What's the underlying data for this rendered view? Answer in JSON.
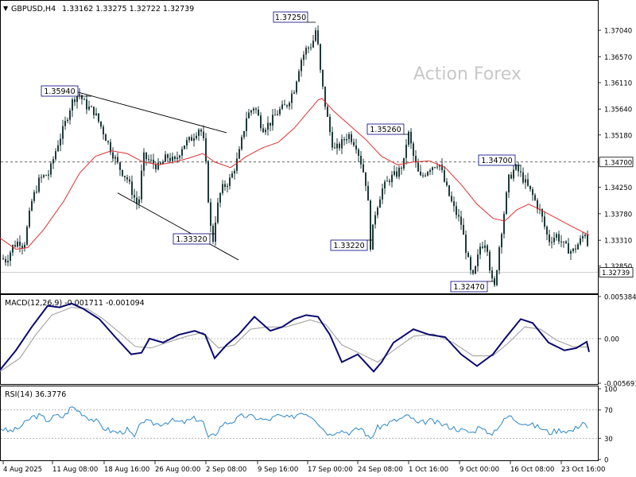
{
  "header": {
    "symbol": "GBPUSD,H4",
    "ohlc": "1.33162 1.33275 1.32722 1.32739"
  },
  "watermark": "Action Forex",
  "colors": {
    "candle": "#1f3a3a",
    "ma": "#e03030",
    "macd_main": "#0a0a6e",
    "macd_signal": "#9a9a9a",
    "rsi": "#2d86c8",
    "level_line": "#333333",
    "trendline": "#000000",
    "grid_dotted": "#aaaaaa",
    "box_border": "#000080"
  },
  "chart_data": [
    {
      "type": "candlestick",
      "title": "GBPUSD,H4",
      "ylim": [
        1.3238,
        1.3755
      ],
      "y_ticks": [
        "1.37040",
        "1.36570",
        "1.36110",
        "1.35640",
        "1.35180",
        "1.34700",
        "1.34250",
        "1.33780",
        "1.33310",
        "1.32850",
        "1.32739"
      ],
      "x_ticks": [
        "4 Aug 2025",
        "11 Aug 08:00",
        "18 Aug 16:00",
        "26 Aug 00:00",
        "2 Sep 08:00",
        "9 Sep 16:00",
        "17 Sep 00:00",
        "24 Sep 08:00",
        "1 Oct 16:00",
        "9 Oct 00:00",
        "16 Oct 08:00",
        "23 Oct 16:00"
      ],
      "price_path": [
        [
          0,
          1.33
        ],
        [
          8,
          1.3295
        ],
        [
          16,
          1.332
        ],
        [
          24,
          1.333
        ],
        [
          30,
          1.332
        ],
        [
          40,
          1.34
        ],
        [
          50,
          1.344
        ],
        [
          62,
          1.345
        ],
        [
          72,
          1.35
        ],
        [
          80,
          1.353
        ],
        [
          90,
          1.3575
        ],
        [
          98,
          1.3594
        ],
        [
          108,
          1.357
        ],
        [
          118,
          1.356
        ],
        [
          128,
          1.353
        ],
        [
          140,
          1.349
        ],
        [
          150,
          1.346
        ],
        [
          160,
          1.344
        ],
        [
          168,
          1.341
        ],
        [
          174,
          1.339
        ],
        [
          180,
          1.348
        ],
        [
          190,
          1.347
        ],
        [
          200,
          1.346
        ],
        [
          210,
          1.348
        ],
        [
          220,
          1.347
        ],
        [
          230,
          1.35
        ],
        [
          240,
          1.351
        ],
        [
          250,
          1.353
        ],
        [
          255,
          1.352
        ],
        [
          260,
          1.345
        ],
        [
          264,
          1.336
        ],
        [
          268,
          1.3332
        ],
        [
          272,
          1.338
        ],
        [
          278,
          1.342
        ],
        [
          290,
          1.344
        ],
        [
          300,
          1.348
        ],
        [
          310,
          1.355
        ],
        [
          320,
          1.357
        ],
        [
          330,
          1.353
        ],
        [
          340,
          1.354
        ],
        [
          350,
          1.356
        ],
        [
          360,
          1.357
        ],
        [
          370,
          1.36
        ],
        [
          378,
          1.365
        ],
        [
          385,
          1.367
        ],
        [
          393,
          1.368
        ],
        [
          398,
          1.371
        ],
        [
          402,
          1.364
        ],
        [
          408,
          1.358
        ],
        [
          414,
          1.353
        ],
        [
          420,
          1.349
        ],
        [
          428,
          1.35
        ],
        [
          438,
          1.352
        ],
        [
          448,
          1.35
        ],
        [
          456,
          1.346
        ],
        [
          462,
          1.342
        ],
        [
          466,
          1.3322
        ],
        [
          472,
          1.338
        ],
        [
          480,
          1.342
        ],
        [
          490,
          1.344
        ],
        [
          500,
          1.345
        ],
        [
          508,
          1.347
        ],
        [
          513,
          1.3526
        ],
        [
          520,
          1.348
        ],
        [
          528,
          1.344
        ],
        [
          540,
          1.346
        ],
        [
          552,
          1.347
        ],
        [
          560,
          1.343
        ],
        [
          570,
          1.339
        ],
        [
          580,
          1.336
        ],
        [
          588,
          1.33
        ],
        [
          594,
          1.326
        ],
        [
          598,
          1.328
        ],
        [
          604,
          1.332
        ],
        [
          612,
          1.333
        ],
        [
          618,
          1.326
        ],
        [
          622,
          1.3247
        ],
        [
          628,
          1.332
        ],
        [
          634,
          1.338
        ],
        [
          640,
          1.344
        ],
        [
          648,
          1.346
        ],
        [
          654,
          1.345
        ],
        [
          662,
          1.343
        ],
        [
          670,
          1.341
        ],
        [
          680,
          1.338
        ],
        [
          690,
          1.333
        ],
        [
          700,
          1.334
        ],
        [
          710,
          1.332
        ],
        [
          720,
          1.331
        ],
        [
          730,
          1.333
        ],
        [
          738,
          1.335
        ],
        [
          741,
          1.3274
        ]
      ],
      "series": [
        {
          "ma_path": [
            [
              0,
              1.3335
            ],
            [
              20,
              1.3315
            ],
            [
              35,
              1.3318
            ],
            [
              55,
              1.335
            ],
            [
              80,
              1.34
            ],
            [
              100,
              1.345
            ],
            [
              120,
              1.348
            ],
            [
              140,
              1.349
            ],
            [
              160,
              1.3485
            ],
            [
              180,
              1.347
            ],
            [
              200,
              1.3465
            ],
            [
              220,
              1.347
            ],
            [
              240,
              1.3478
            ],
            [
              255,
              1.3485
            ],
            [
              270,
              1.347
            ],
            [
              290,
              1.346
            ],
            [
              310,
              1.348
            ],
            [
              330,
              1.3495
            ],
            [
              350,
              1.3505
            ],
            [
              370,
              1.353
            ],
            [
              385,
              1.3555
            ],
            [
              400,
              1.358
            ],
            [
              405,
              1.3583
            ],
            [
              420,
              1.356
            ],
            [
              440,
              1.3535
            ],
            [
              460,
              1.351
            ],
            [
              480,
              1.348
            ],
            [
              500,
              1.3465
            ],
            [
              520,
              1.347
            ],
            [
              540,
              1.3472
            ],
            [
              560,
              1.346
            ],
            [
              580,
              1.343
            ],
            [
              600,
              1.3395
            ],
            [
              620,
              1.337
            ],
            [
              635,
              1.3365
            ],
            [
              650,
              1.3385
            ],
            [
              665,
              1.3395
            ],
            [
              680,
              1.3385
            ],
            [
              700,
              1.337
            ],
            [
              720,
              1.3355
            ],
            [
              741,
              1.334
            ]
          ]
        }
      ],
      "levels": [
        {
          "value": 1.347,
          "label": "1.34700",
          "style": "dashed"
        }
      ],
      "current_price": {
        "value": 1.32739,
        "label": "1.32739"
      },
      "annotations": [
        "1.35940",
        "1.37250",
        "1.35260",
        "1.34700",
        "1.33320",
        "1.33220",
        "1.32470"
      ],
      "trendlines": [
        {
          "from": [
            98,
            1.3594
          ],
          "to": [
            285,
            1.3522
          ]
        },
        {
          "from": [
            148,
            1.3415
          ],
          "to": [
            300,
            1.3296
          ]
        }
      ]
    },
    {
      "type": "line",
      "title": "MACD(12,26,9) -0.001711 -0.001094",
      "ylim": [
        -0.00569,
        0.00538
      ],
      "y_ticks": [
        "0.005384",
        "0.00",
        "-0.005691"
      ],
      "series": [
        {
          "name": "MACD(12,26,9)",
          "values_path": [
            [
              0,
              -0.004
            ],
            [
              20,
              -0.0015
            ],
            [
              40,
              0.0015
            ],
            [
              60,
              0.0042
            ],
            [
              75,
              0.004
            ],
            [
              90,
              0.0045
            ],
            [
              105,
              0.0038
            ],
            [
              125,
              0.0025
            ],
            [
              145,
              0.0002
            ],
            [
              165,
              -0.002
            ],
            [
              178,
              -0.0018
            ],
            [
              188,
              0.0
            ],
            [
              205,
              -0.0005
            ],
            [
              225,
              0.0005
            ],
            [
              245,
              0.001
            ],
            [
              258,
              0.0005
            ],
            [
              270,
              -0.0025
            ],
            [
              285,
              -0.0008
            ],
            [
              300,
              0.0005
            ],
            [
              320,
              0.0028
            ],
            [
              340,
              0.001
            ],
            [
              355,
              0.0015
            ],
            [
              370,
              0.0025
            ],
            [
              385,
              0.003
            ],
            [
              400,
              0.0028
            ],
            [
              415,
              0.0005
            ],
            [
              430,
              -0.003
            ],
            [
              450,
              -0.002
            ],
            [
              470,
              -0.0042
            ],
            [
              480,
              -0.003
            ],
            [
              495,
              -0.0005
            ],
            [
              520,
              0.0012
            ],
            [
              540,
              0.0005
            ],
            [
              560,
              0.0002
            ],
            [
              580,
              -0.002
            ],
            [
              600,
              -0.0035
            ],
            [
              620,
              -0.002
            ],
            [
              635,
              0.0
            ],
            [
              655,
              0.0025
            ],
            [
              670,
              0.002
            ],
            [
              690,
              -0.0005
            ],
            [
              710,
              -0.0015
            ],
            [
              725,
              -0.0012
            ],
            [
              738,
              -0.0004
            ],
            [
              741,
              -0.0017
            ]
          ]
        },
        {
          "name": "Signal",
          "values_path": [
            [
              0,
              -0.0042
            ],
            [
              25,
              -0.0025
            ],
            [
              45,
              0.0005
            ],
            [
              65,
              0.003
            ],
            [
              90,
              0.004
            ],
            [
              110,
              0.0038
            ],
            [
              130,
              0.0025
            ],
            [
              150,
              0.0008
            ],
            [
              170,
              -0.001
            ],
            [
              190,
              -0.0012
            ],
            [
              210,
              -0.0005
            ],
            [
              235,
              0.0003
            ],
            [
              255,
              0.0008
            ],
            [
              275,
              -0.0012
            ],
            [
              295,
              -0.0008
            ],
            [
              315,
              0.0012
            ],
            [
              335,
              0.0015
            ],
            [
              360,
              0.0015
            ],
            [
              390,
              0.0024
            ],
            [
              410,
              0.0018
            ],
            [
              430,
              -0.0008
            ],
            [
              455,
              -0.002
            ],
            [
              475,
              -0.003
            ],
            [
              495,
              -0.0015
            ],
            [
              520,
              0.0003
            ],
            [
              545,
              0.0006
            ],
            [
              570,
              -0.0005
            ],
            [
              595,
              -0.0022
            ],
            [
              620,
              -0.0022
            ],
            [
              640,
              -0.0005
            ],
            [
              660,
              0.0015
            ],
            [
              680,
              0.0012
            ],
            [
              700,
              -0.0002
            ],
            [
              720,
              -0.001
            ],
            [
              741,
              -0.0011
            ]
          ]
        }
      ]
    },
    {
      "type": "line",
      "title": "RSI(14) 36.3776",
      "ylim": [
        0,
        100
      ],
      "y_ticks": [
        "100",
        "70",
        "30",
        "0"
      ],
      "levels": [
        70,
        30
      ],
      "series": [
        {
          "name": "RSI(14)",
          "values_path": [
            [
              0,
              45
            ],
            [
              10,
              40
            ],
            [
              20,
              42
            ],
            [
              30,
              50
            ],
            [
              40,
              60
            ],
            [
              50,
              62
            ],
            [
              60,
              55
            ],
            [
              70,
              62
            ],
            [
              80,
              60
            ],
            [
              90,
              75
            ],
            [
              100,
              68
            ],
            [
              110,
              60
            ],
            [
              120,
              55
            ],
            [
              130,
              45
            ],
            [
              140,
              40
            ],
            [
              150,
              38
            ],
            [
              160,
              42
            ],
            [
              170,
              30
            ],
            [
              178,
              55
            ],
            [
              188,
              52
            ],
            [
              200,
              50
            ],
            [
              215,
              55
            ],
            [
              230,
              52
            ],
            [
              245,
              58
            ],
            [
              255,
              55
            ],
            [
              262,
              30
            ],
            [
              270,
              35
            ],
            [
              280,
              50
            ],
            [
              295,
              55
            ],
            [
              305,
              62
            ],
            [
              320,
              60
            ],
            [
              335,
              55
            ],
            [
              350,
              62
            ],
            [
              365,
              58
            ],
            [
              380,
              68
            ],
            [
              395,
              60
            ],
            [
              405,
              45
            ],
            [
              415,
              35
            ],
            [
              425,
              42
            ],
            [
              440,
              38
            ],
            [
              455,
              45
            ],
            [
              465,
              28
            ],
            [
              475,
              45
            ],
            [
              490,
              52
            ],
            [
              505,
              58
            ],
            [
              515,
              62
            ],
            [
              525,
              50
            ],
            [
              540,
              55
            ],
            [
              555,
              50
            ],
            [
              570,
              45
            ],
            [
              585,
              40
            ],
            [
              595,
              38
            ],
            [
              605,
              50
            ],
            [
              615,
              32
            ],
            [
              625,
              45
            ],
            [
              640,
              62
            ],
            [
              650,
              55
            ],
            [
              665,
              50
            ],
            [
              680,
              45
            ],
            [
              690,
              38
            ],
            [
              705,
              42
            ],
            [
              720,
              40
            ],
            [
              735,
              55
            ],
            [
              741,
              36
            ]
          ]
        }
      ]
    }
  ]
}
